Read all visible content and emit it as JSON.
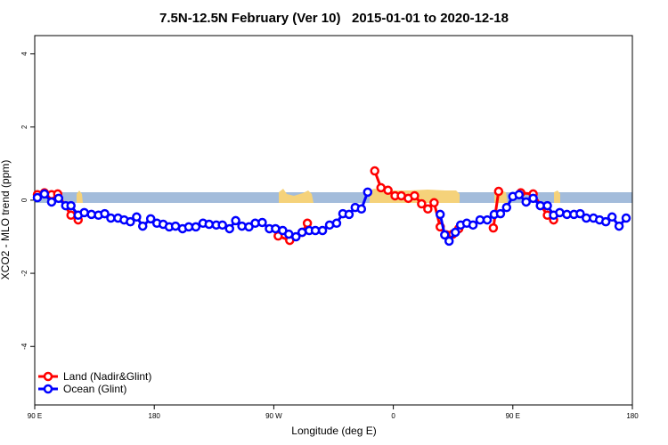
{
  "chart_data": {
    "type": "line",
    "title": "7.5N-12.5N February (Ver 10)   2015-01-01 to 2020-12-18",
    "x_label": "Longitude (deg E)",
    "y_label": "XCO2 - MLO trend (ppm)",
    "xlim": [
      90,
      540
    ],
    "ylim": [
      -5.6,
      4.5
    ],
    "xticks": [
      {
        "value": 90,
        "label": "90 E"
      },
      180,
      {
        "value": 270,
        "label": "90 W"
      },
      {
        "value": 360,
        "label": "0"
      },
      {
        "value": 450,
        "label": "90 E"
      },
      {
        "value": 540,
        "label": "180"
      }
    ],
    "yticks": [
      -4,
      -2,
      0,
      2,
      4
    ],
    "legend": "bottom-left",
    "series": [
      {
        "name": "Land (Nadir&Glint)",
        "color": "#ff0000",
        "x": [
          92,
          97.3,
          102.7,
          107.3,
          117.3,
          122.7,
          null,
          273.3,
          282,
          291.3,
          295.3,
          null,
          346,
          350.7,
          356,
          361.3,
          366,
          371.3,
          376,
          381.3,
          386,
          390.7,
          395.3,
          400,
          404.7,
          409.3,
          null,
          435.3,
          439.3,
          null,
          456,
          465.3,
          476,
          480.7
        ],
        "values": [
          0.15,
          0.2,
          0.15,
          0.17,
          -0.41,
          -0.54,
          null,
          -0.98,
          -1.1,
          -0.88,
          -0.63,
          null,
          0.8,
          0.34,
          0.27,
          0.12,
          0.12,
          0.05,
          0.12,
          -0.1,
          -0.24,
          -0.07,
          -0.73,
          -0.95,
          -0.93,
          -0.78,
          null,
          -0.76,
          0.24,
          null,
          0.2,
          0.17,
          -0.41,
          -0.54
        ]
      },
      {
        "name": "Ocean (Glint)",
        "color": "#0000ff",
        "x": [
          92,
          97.3,
          102.7,
          108,
          113.3,
          117.3,
          122.7,
          127.3,
          132.7,
          138,
          142.7,
          147.3,
          152.7,
          157.3,
          162,
          166.7,
          171.3,
          177.3,
          182,
          186.7,
          191.3,
          196,
          201.3,
          206,
          211.3,
          216.7,
          221.3,
          226.7,
          231.3,
          236.7,
          241.3,
          246,
          251.3,
          256,
          261.3,
          266.7,
          271.3,
          276.7,
          281.3,
          286.7,
          291.3,
          296.7,
          301.3,
          306.7,
          312,
          317.3,
          322,
          326.7,
          331.3,
          336,
          340.7,
          null,
          395.3,
          398.7,
          402,
          406.7,
          410.7,
          415.3,
          420,
          425.3,
          430.7,
          436,
          440.7,
          445.3,
          450,
          454.7,
          460,
          465.3,
          470.7,
          476,
          480.7,
          485.3,
          490.7,
          496,
          500.7,
          505.3,
          510.7,
          515.3,
          520,
          524.7,
          530,
          535.3
        ],
        "values": [
          0.07,
          0.17,
          -0.05,
          0.05,
          -0.15,
          -0.15,
          -0.41,
          -0.34,
          -0.39,
          -0.41,
          -0.37,
          -0.49,
          -0.49,
          -0.54,
          -0.59,
          -0.46,
          -0.71,
          -0.51,
          -0.63,
          -0.66,
          -0.73,
          -0.71,
          -0.78,
          -0.73,
          -0.73,
          -0.63,
          -0.66,
          -0.68,
          -0.68,
          -0.78,
          -0.56,
          -0.71,
          -0.73,
          -0.63,
          -0.61,
          -0.78,
          -0.78,
          -0.83,
          -0.93,
          -1.0,
          -0.88,
          -0.83,
          -0.83,
          -0.83,
          -0.68,
          -0.63,
          -0.37,
          -0.39,
          -0.2,
          -0.24,
          0.22,
          null,
          -0.39,
          -0.95,
          -1.12,
          -0.88,
          -0.68,
          -0.63,
          -0.68,
          -0.54,
          -0.54,
          -0.39,
          -0.37,
          -0.2,
          0.1,
          0.15,
          -0.05,
          0.05,
          -0.15,
          -0.15,
          -0.41,
          -0.34,
          -0.39,
          -0.39,
          -0.37,
          -0.49,
          -0.49,
          -0.54,
          -0.59,
          -0.46,
          -0.71,
          -0.49
        ]
      }
    ]
  }
}
